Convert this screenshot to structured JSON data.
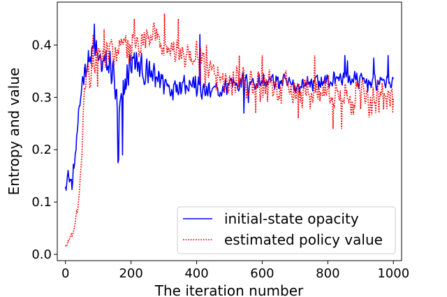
{
  "chart_data": {
    "type": "line",
    "title": "",
    "xlabel": "The iteration number",
    "ylabel": "Entropy and value",
    "xlim": [
      -25,
      1025
    ],
    "ylim": [
      -0.012,
      0.482
    ],
    "x_ticks": [
      0,
      200,
      400,
      600,
      800,
      1000
    ],
    "y_ticks": [
      0.0,
      0.1,
      0.2,
      0.3,
      0.4
    ],
    "x_tick_labels": [
      "0",
      "200",
      "400",
      "600",
      "800",
      "1000"
    ],
    "y_tick_labels": [
      "0.0",
      "0.1",
      "0.2",
      "0.3",
      "0.4"
    ],
    "grid": false,
    "legend_position": "lower-right",
    "series": [
      {
        "name": "initial-state opacity",
        "style": "solid",
        "color": "#0000ff",
        "anchors": [
          [
            0,
            0.14
          ],
          [
            10,
            0.15
          ],
          [
            20,
            0.13
          ],
          [
            30,
            0.19
          ],
          [
            40,
            0.25
          ],
          [
            50,
            0.33
          ],
          [
            60,
            0.36
          ],
          [
            70,
            0.37
          ],
          [
            80,
            0.38
          ],
          [
            90,
            0.39
          ],
          [
            100,
            0.37
          ],
          [
            120,
            0.36
          ],
          [
            140,
            0.36
          ],
          [
            150,
            0.33
          ],
          [
            160,
            0.25
          ],
          [
            170,
            0.28
          ],
          [
            180,
            0.32
          ],
          [
            200,
            0.37
          ],
          [
            220,
            0.36
          ],
          [
            250,
            0.34
          ],
          [
            280,
            0.34
          ],
          [
            300,
            0.33
          ],
          [
            320,
            0.32
          ],
          [
            350,
            0.33
          ],
          [
            380,
            0.33
          ],
          [
            400,
            0.32
          ],
          [
            420,
            0.31
          ],
          [
            450,
            0.31
          ],
          [
            480,
            0.31
          ],
          [
            500,
            0.33
          ],
          [
            550,
            0.33
          ],
          [
            600,
            0.33
          ],
          [
            650,
            0.33
          ],
          [
            700,
            0.32
          ],
          [
            750,
            0.33
          ],
          [
            800,
            0.33
          ],
          [
            850,
            0.34
          ],
          [
            900,
            0.33
          ],
          [
            950,
            0.33
          ],
          [
            1000,
            0.33
          ]
        ],
        "noise": [
          [
            0,
            0.02
          ],
          [
            50,
            0.03
          ],
          [
            150,
            0.05
          ],
          [
            250,
            0.035
          ],
          [
            450,
            0.025
          ],
          [
            1000,
            0.02
          ]
        ],
        "spikes": [
          [
            88,
            0.44
          ],
          [
            160,
            0.175
          ],
          [
            163,
            0.18
          ],
          [
            174,
            0.19
          ],
          [
            275,
            0.32
          ],
          [
            410,
            0.42
          ],
          [
            545,
            0.27
          ],
          [
            558,
            0.29
          ],
          [
            852,
            0.38
          ],
          [
            860,
            0.37
          ],
          [
            940,
            0.375
          ],
          [
            985,
            0.38
          ]
        ]
      },
      {
        "name": "estimated policy value",
        "style": "dotted",
        "color": "#ff0000",
        "anchors": [
          [
            0,
            0.015
          ],
          [
            10,
            0.025
          ],
          [
            20,
            0.04
          ],
          [
            30,
            0.06
          ],
          [
            40,
            0.1
          ],
          [
            50,
            0.18
          ],
          [
            55,
            0.28
          ],
          [
            60,
            0.32
          ],
          [
            70,
            0.34
          ],
          [
            80,
            0.36
          ],
          [
            100,
            0.37
          ],
          [
            130,
            0.38
          ],
          [
            160,
            0.39
          ],
          [
            200,
            0.4
          ],
          [
            230,
            0.4
          ],
          [
            260,
            0.41
          ],
          [
            300,
            0.4
          ],
          [
            330,
            0.39
          ],
          [
            360,
            0.38
          ],
          [
            400,
            0.37
          ],
          [
            450,
            0.34
          ],
          [
            500,
            0.33
          ],
          [
            550,
            0.32
          ],
          [
            600,
            0.32
          ],
          [
            650,
            0.32
          ],
          [
            700,
            0.31
          ],
          [
            750,
            0.31
          ],
          [
            800,
            0.31
          ],
          [
            850,
            0.3
          ],
          [
            900,
            0.3
          ],
          [
            950,
            0.3
          ],
          [
            1000,
            0.3
          ]
        ],
        "noise": [
          [
            0,
            0.005
          ],
          [
            50,
            0.015
          ],
          [
            70,
            0.04
          ],
          [
            500,
            0.04
          ],
          [
            1000,
            0.04
          ]
        ],
        "spikes": [
          [
            85,
            0.42
          ],
          [
            98,
            0.32
          ],
          [
            118,
            0.43
          ],
          [
            210,
            0.45
          ],
          [
            302,
            0.46
          ],
          [
            345,
            0.45
          ],
          [
            368,
            0.38
          ],
          [
            410,
            0.33
          ],
          [
            430,
            0.4
          ],
          [
            530,
            0.38
          ],
          [
            580,
            0.27
          ],
          [
            600,
            0.38
          ],
          [
            710,
            0.26
          ],
          [
            760,
            0.38
          ],
          [
            816,
            0.24
          ],
          [
            842,
            0.24
          ],
          [
            946,
            0.27
          ],
          [
            998,
            0.27
          ]
        ]
      }
    ]
  }
}
